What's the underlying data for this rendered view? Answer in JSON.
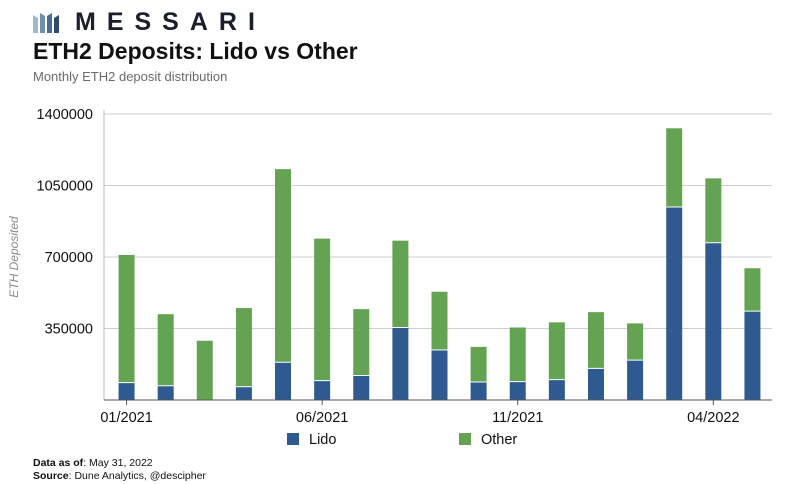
{
  "header": {
    "brand": "MESSARI",
    "title": "ETH2 Deposits: Lido vs Other",
    "subtitle": "Monthly ETH2 deposit distribution"
  },
  "footer": {
    "data_label": "Data as of",
    "data_value": ": May 31, 2022",
    "source_label": "Source",
    "source_value": ": Dune Analytics, @descipher"
  },
  "colors": {
    "lido": "#2e5a8f",
    "other": "#64a351",
    "grid": "#cfcfcf",
    "brand": "#1a1f2b"
  },
  "chart_data": {
    "type": "bar",
    "stacked": true,
    "title": "ETH2 Deposits: Lido vs Other",
    "xlabel": "",
    "ylabel": "ETH Deposited",
    "ylim": [
      0,
      1400000
    ],
    "yticks": [
      "1400000",
      "1050000",
      "700000",
      "350000"
    ],
    "ytick_values": [
      1400000,
      1050000,
      700000,
      350000
    ],
    "categories": [
      "01/2021",
      "02/2021",
      "03/2021",
      "04/2021",
      "05/2021",
      "06/2021",
      "07/2021",
      "08/2021",
      "09/2021",
      "10/2021",
      "11/2021",
      "12/2021",
      "01/2022",
      "02/2022",
      "03/2022",
      "04/2022",
      "05/2022"
    ],
    "xtick_labels": [
      "01/2021",
      "06/2021",
      "11/2021",
      "04/2022"
    ],
    "xtick_indices": [
      0,
      5,
      10,
      15
    ],
    "series": [
      {
        "name": "Lido",
        "values": [
          85000,
          70000,
          0,
          65000,
          185000,
          95000,
          120000,
          355000,
          245000,
          88000,
          90000,
          100000,
          155000,
          195000,
          945000,
          770000,
          435000
        ]
      },
      {
        "name": "Other",
        "values": [
          625000,
          350000,
          290000,
          385000,
          945000,
          695000,
          325000,
          425000,
          285000,
          172000,
          265000,
          280000,
          275000,
          180000,
          385000,
          315000,
          210000
        ]
      }
    ],
    "legend": [
      "Lido",
      "Other"
    ],
    "legend_position": "bottom",
    "grid": true
  }
}
